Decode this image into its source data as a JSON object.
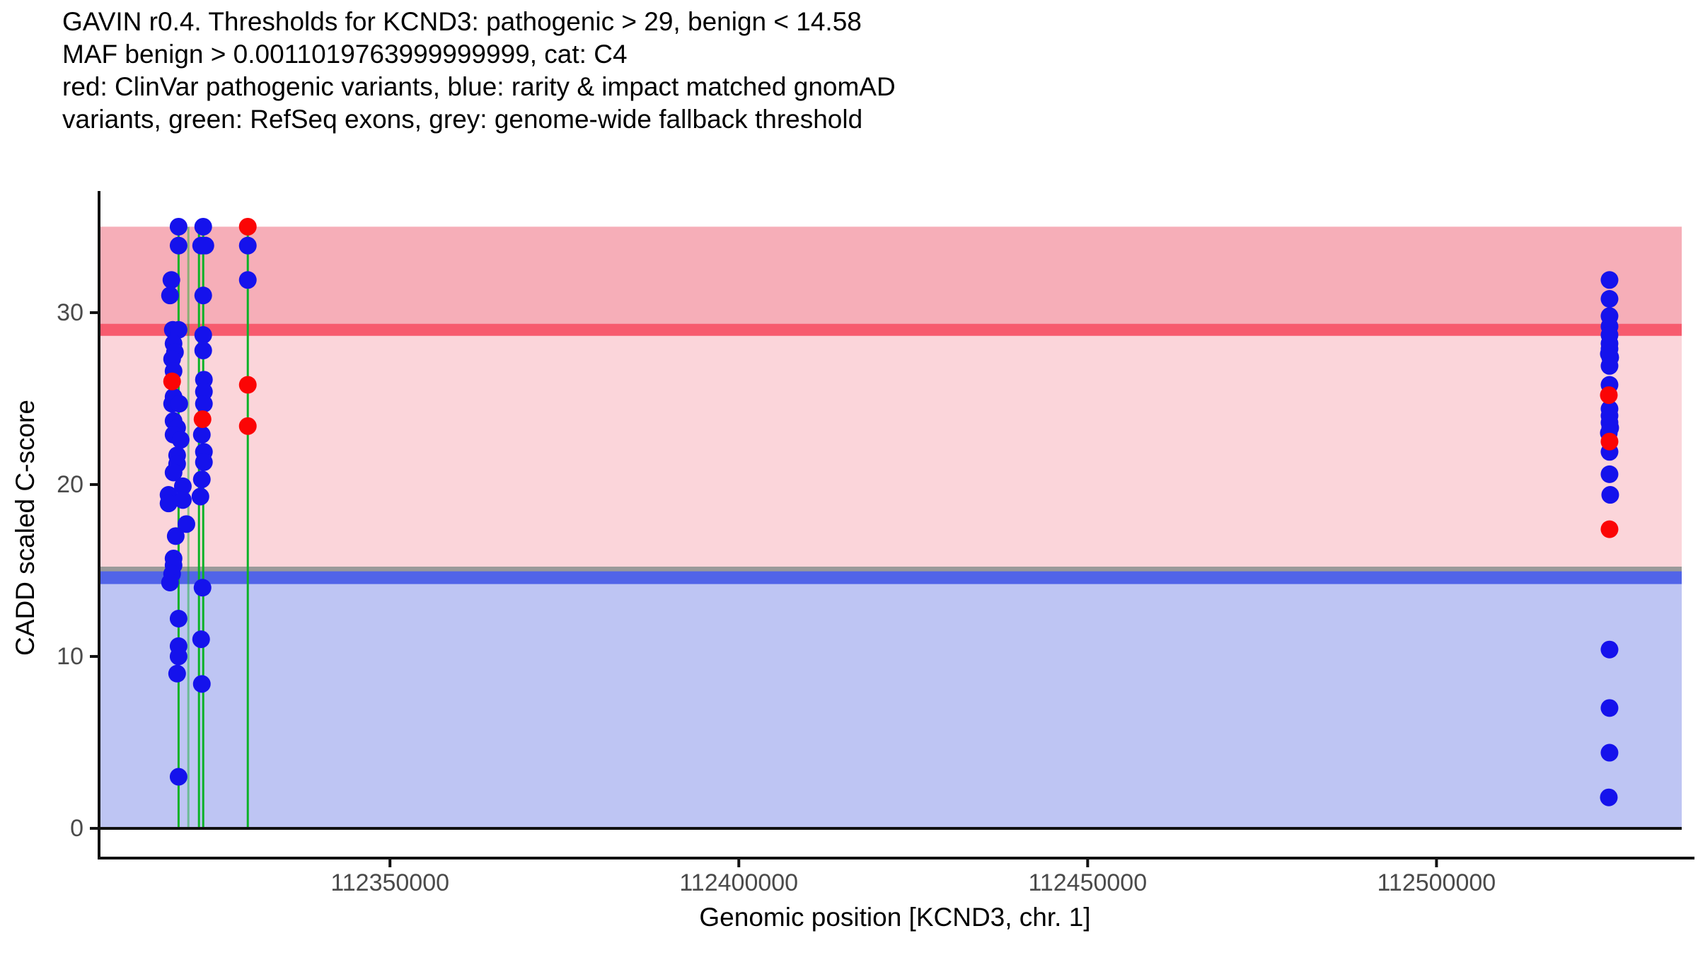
{
  "title": {
    "line1": "GAVIN r0.4. Thresholds for KCND3: pathogenic > 29, benign < 14.58",
    "line2": "MAF benign > 0.0011019763999999999, cat: C4",
    "line3": "red: ClinVar pathogenic variants, blue: rarity & impact matched gnomAD",
    "line4": "variants, green: RefSeq exons, grey: genome-wide fallback threshold"
  },
  "colors": {
    "pathogenic_band": "#f6aeb8",
    "vous_band": "#fbd5da",
    "benign_band": "#bec5f3",
    "pathogenic_threshold_line": "#f75b6e",
    "benign_threshold_line": "#5164e8",
    "fallback_threshold_line": "#9a9a9a",
    "exon_line": "#0bb226",
    "dot_blue": "#1512ec",
    "dot_red": "#fb0505",
    "axis_line": "#111111",
    "tick_label": "#4a4a4a",
    "zero_line": "#111111"
  },
  "chart_data": {
    "type": "scatter",
    "title": "GAVIN r0.4. Thresholds for KCND3",
    "xlabel": "Genomic position [KCND3, chr. 1]",
    "ylabel": "CADD scaled C-score",
    "x_ticks": [
      112350000,
      112400000,
      112450000,
      112500000
    ],
    "y_ticks": [
      0,
      10,
      20,
      30
    ],
    "xlim": [
      112308300,
      112535150
    ],
    "ylim": [
      -1.73,
      36.87
    ],
    "grid": false,
    "legend_position": "none",
    "thresholds": {
      "pathogenic": 29,
      "benign": 14.58,
      "genome_wide_fallback": 15,
      "maf_benign": "0.0011019763999999999",
      "category": "C4"
    },
    "regions": {
      "band_top_score": 35.0,
      "band_bottom_score": 0,
      "pathogenic_range": [
        29,
        35.0
      ],
      "vous_range": [
        14.58,
        29
      ],
      "benign_range": [
        0,
        14.58
      ]
    },
    "exons": [
      {
        "pos": 112319700,
        "opacity": 1
      },
      {
        "pos": 112321100,
        "opacity": 0.45
      },
      {
        "pos": 112322620,
        "opacity": 1
      },
      {
        "pos": 112323230,
        "opacity": 1
      },
      {
        "pos": 112329620,
        "opacity": 1
      }
    ],
    "series": [
      {
        "name": "rarity & impact matched gnomAD variants",
        "color_key": "dot_blue",
        "points": [
          [
            112319700,
            35.0
          ],
          [
            112319700,
            33.9
          ],
          [
            112318670,
            31.9
          ],
          [
            112318470,
            31.0
          ],
          [
            112318870,
            29.0
          ],
          [
            112319700,
            29.0
          ],
          [
            112318980,
            28.2
          ],
          [
            112319180,
            27.7
          ],
          [
            112318770,
            27.3
          ],
          [
            112318980,
            26.6
          ],
          [
            112318980,
            25.1
          ],
          [
            112318770,
            24.7
          ],
          [
            112319800,
            24.7
          ],
          [
            112318980,
            23.7
          ],
          [
            112319490,
            23.3
          ],
          [
            112318980,
            22.9
          ],
          [
            112320000,
            22.6
          ],
          [
            112319490,
            21.7
          ],
          [
            112319490,
            21.2
          ],
          [
            112318980,
            20.7
          ],
          [
            112320310,
            19.9
          ],
          [
            112318260,
            19.4
          ],
          [
            112320310,
            19.1
          ],
          [
            112318260,
            18.9
          ],
          [
            112320820,
            17.7
          ],
          [
            112319290,
            17.0
          ],
          [
            112318980,
            15.7
          ],
          [
            112318980,
            15.3
          ],
          [
            112318770,
            14.8
          ],
          [
            112318470,
            14.3
          ],
          [
            112319700,
            12.2
          ],
          [
            112319700,
            10.6
          ],
          [
            112319700,
            10.0
          ],
          [
            112319490,
            9.0
          ],
          [
            112319700,
            3.0
          ],
          [
            112323230,
            35.0
          ],
          [
            112322930,
            33.9
          ],
          [
            112323540,
            33.9
          ],
          [
            112323230,
            31.0
          ],
          [
            112323230,
            28.7
          ],
          [
            112323230,
            27.8
          ],
          [
            112323330,
            26.1
          ],
          [
            112323330,
            25.4
          ],
          [
            112323330,
            24.7
          ],
          [
            112323030,
            22.9
          ],
          [
            112323330,
            21.9
          ],
          [
            112323330,
            21.3
          ],
          [
            112323030,
            20.3
          ],
          [
            112322830,
            19.3
          ],
          [
            112323130,
            14.0
          ],
          [
            112322930,
            11.0
          ],
          [
            112323030,
            8.4
          ],
          [
            112329620,
            33.9
          ],
          [
            112329620,
            31.9
          ],
          [
            112524800,
            31.9
          ],
          [
            112524800,
            30.8
          ],
          [
            112524800,
            29.8
          ],
          [
            112524800,
            29.2
          ],
          [
            112524800,
            28.7
          ],
          [
            112524800,
            28.2
          ],
          [
            112524800,
            27.9
          ],
          [
            112524700,
            27.6
          ],
          [
            112524900,
            27.4
          ],
          [
            112524800,
            26.9
          ],
          [
            112524800,
            25.8
          ],
          [
            112524800,
            24.4
          ],
          [
            112524800,
            24.0
          ],
          [
            112524800,
            23.6
          ],
          [
            112524900,
            23.3
          ],
          [
            112524700,
            23.0
          ],
          [
            112524800,
            21.9
          ],
          [
            112524800,
            20.6
          ],
          [
            112524900,
            19.4
          ],
          [
            112524800,
            10.4
          ],
          [
            112524800,
            7.0
          ],
          [
            112524800,
            4.4
          ],
          [
            112524700,
            1.8
          ]
        ]
      },
      {
        "name": "ClinVar pathogenic variants",
        "color_key": "dot_red",
        "points": [
          [
            112318770,
            26.0
          ],
          [
            112323130,
            23.8
          ],
          [
            112329620,
            35.0
          ],
          [
            112329620,
            25.8
          ],
          [
            112329620,
            23.4
          ],
          [
            112524700,
            25.2
          ],
          [
            112524800,
            22.5
          ],
          [
            112524800,
            17.4
          ]
        ]
      }
    ]
  }
}
